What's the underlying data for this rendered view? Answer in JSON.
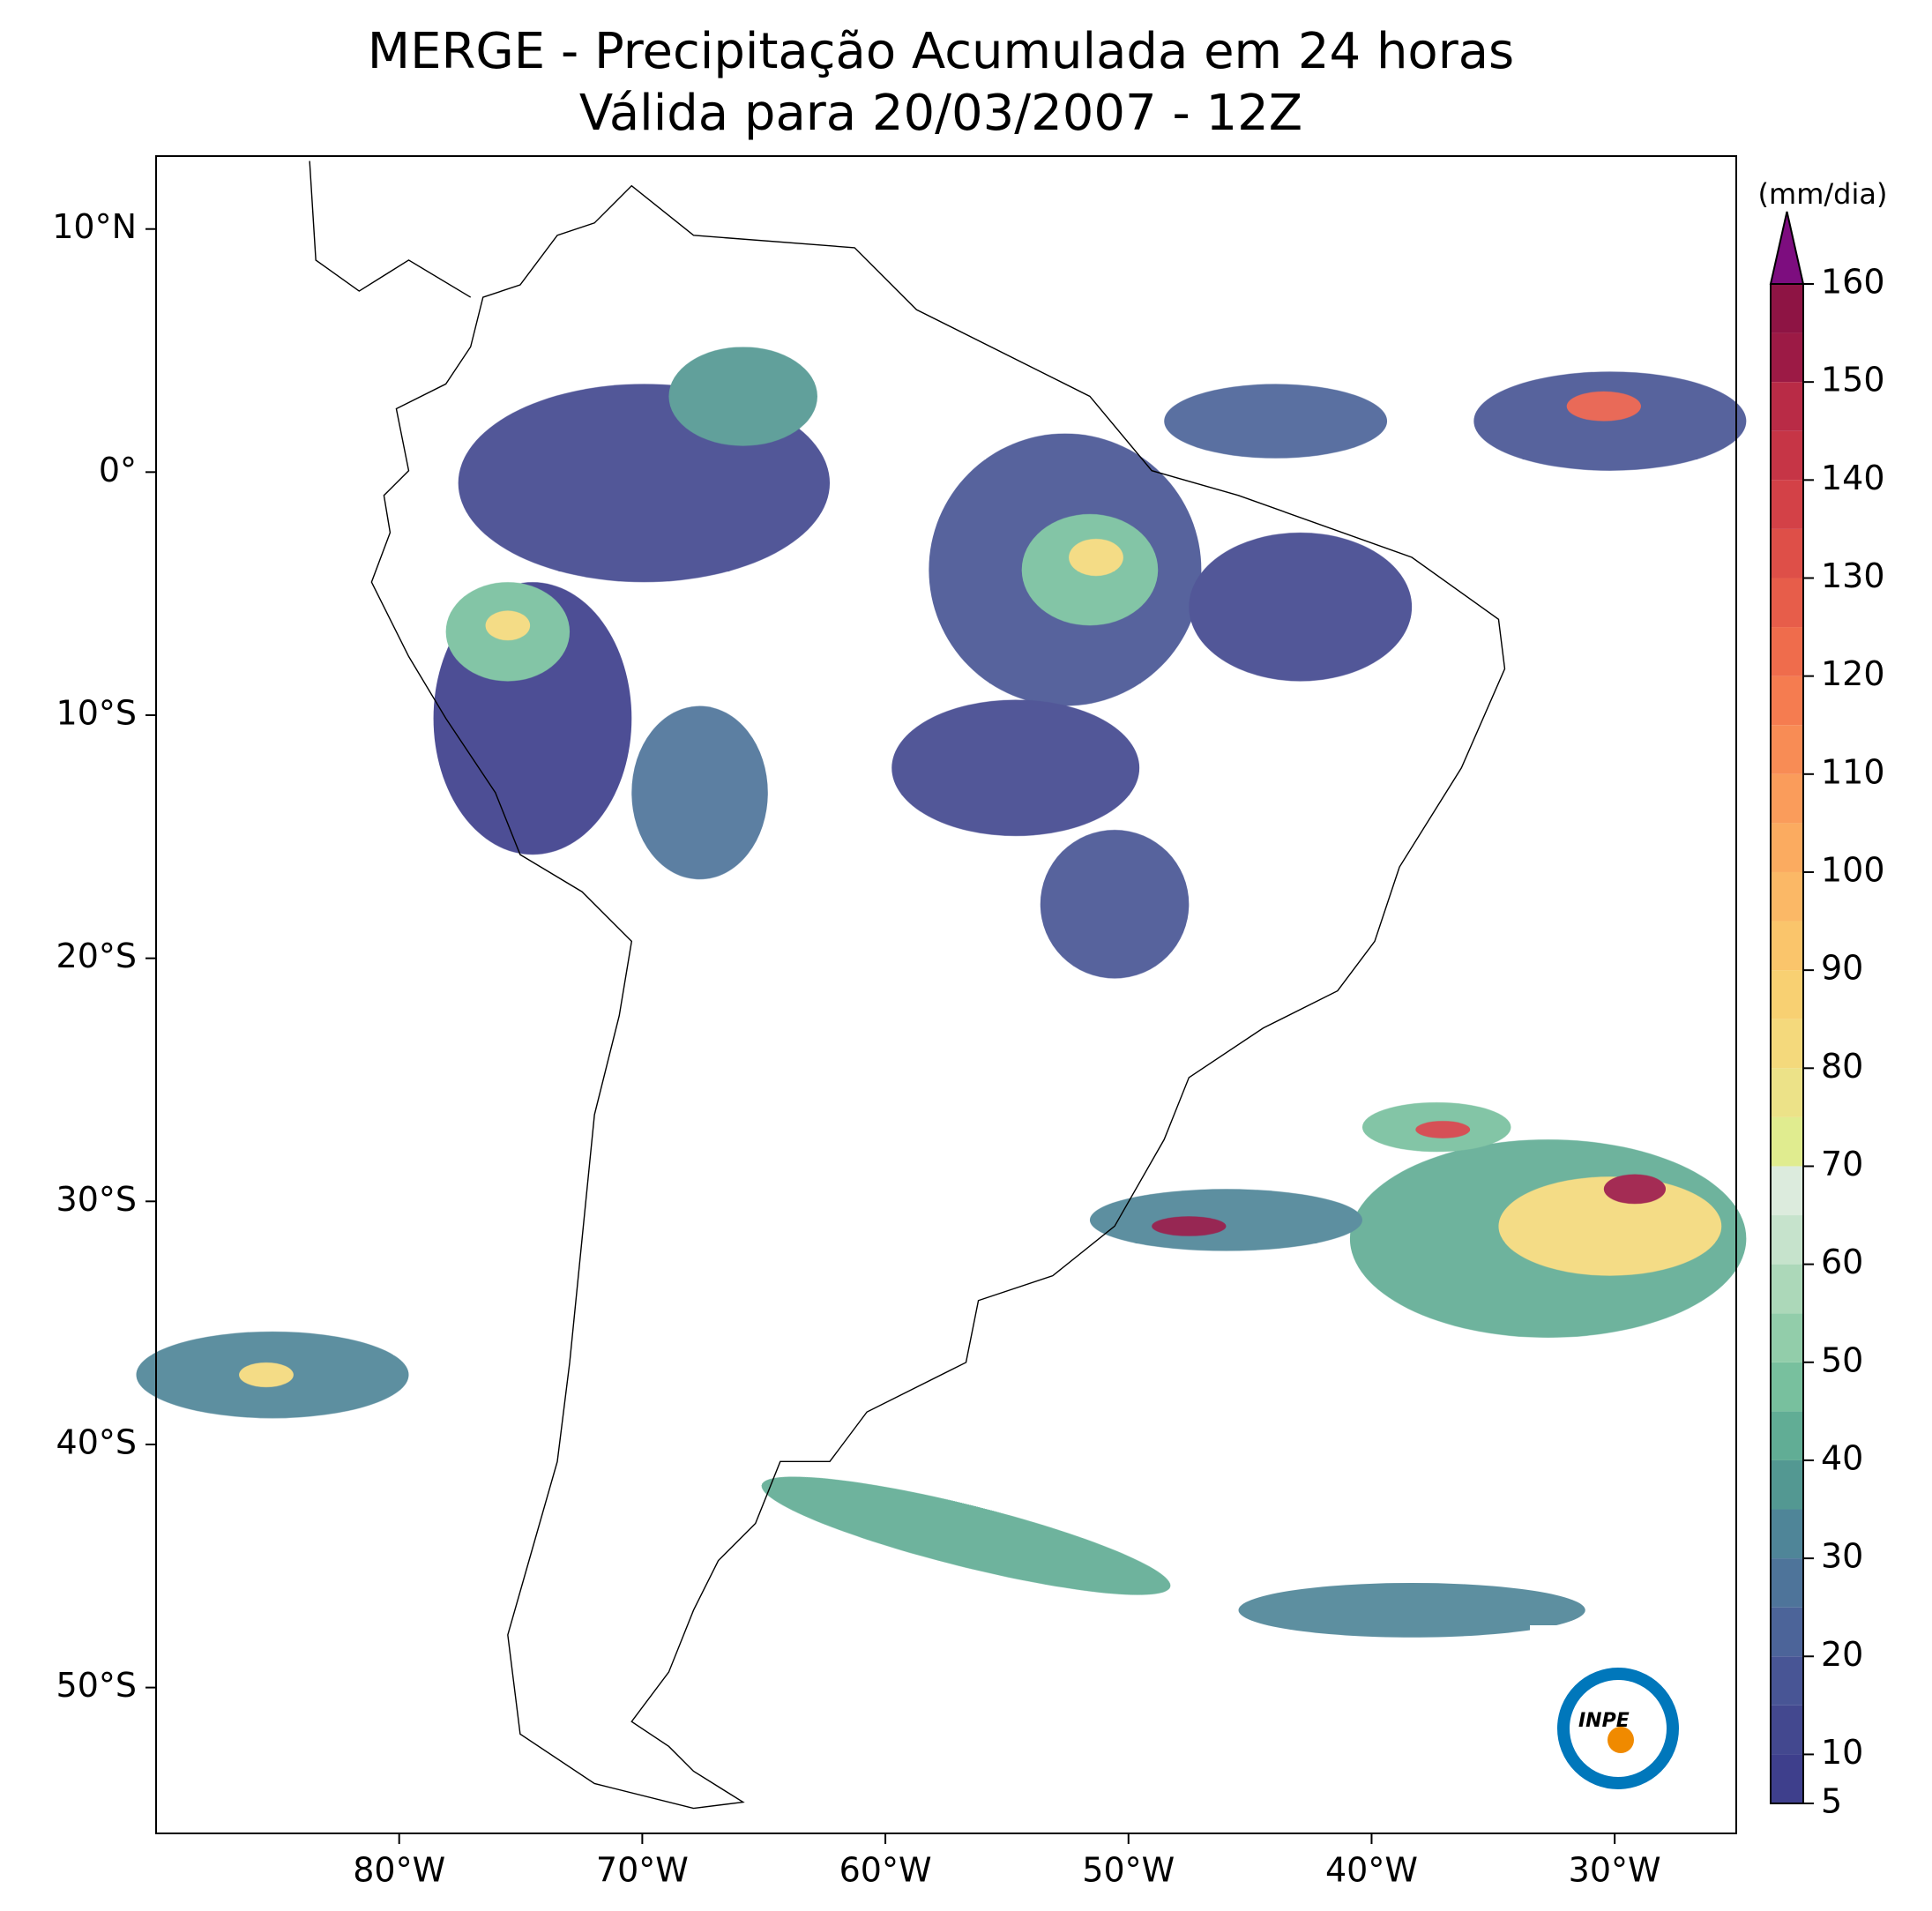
{
  "chart_data": {
    "type": "map",
    "title": "MERGE - Precipitação Acumulada em 24 horas",
    "subtitle": "Válida para 20/03/2007 - 12Z",
    "xlim": [
      -90,
      -25
    ],
    "ylim": [
      -56,
      13
    ],
    "xticks": [
      {
        "value": -80,
        "label": "80°W"
      },
      {
        "value": -70,
        "label": "70°W"
      },
      {
        "value": -60,
        "label": "60°W"
      },
      {
        "value": -50,
        "label": "50°W"
      },
      {
        "value": -40,
        "label": "40°W"
      },
      {
        "value": -30,
        "label": "30°W"
      }
    ],
    "yticks": [
      {
        "value": 10,
        "label": "10°N"
      },
      {
        "value": 0,
        "label": "0°"
      },
      {
        "value": -10,
        "label": "10°S"
      },
      {
        "value": -20,
        "label": "20°S"
      },
      {
        "value": -30,
        "label": "30°S"
      },
      {
        "value": -40,
        "label": "40°S"
      },
      {
        "value": -50,
        "label": "50°S"
      }
    ],
    "colorbar": {
      "label": "(mm/dia)",
      "levels": [
        5,
        10,
        15,
        20,
        25,
        30,
        35,
        40,
        45,
        50,
        55,
        60,
        65,
        70,
        75,
        80,
        85,
        90,
        95,
        100,
        105,
        110,
        115,
        120,
        125,
        130,
        135,
        140,
        145,
        150,
        155,
        160
      ],
      "colors": [
        "#3e3f8c",
        "#43488f",
        "#485595",
        "#4c6499",
        "#4e749a",
        "#4f8598",
        "#539892",
        "#61ad95",
        "#78c09e",
        "#92cdaa",
        "#acd8b9",
        "#c6e3cc",
        "#dcebdd",
        "#e0ec8f",
        "#ece288",
        "#f4d97c",
        "#f8d072",
        "#fac56b",
        "#fbb866",
        "#fbab60",
        "#fa9c5b",
        "#f88c55",
        "#f57c50",
        "#ef6c4c",
        "#e75d4a",
        "#de4f48",
        "#d34147",
        "#c63546",
        "#b92b46",
        "#9c1a45",
        "#8e1444"
      ],
      "extend_color": "#7d0d7f",
      "ticks": [
        5,
        10,
        20,
        30,
        40,
        50,
        60,
        70,
        80,
        90,
        100,
        110,
        120,
        130,
        140,
        150,
        160
      ]
    },
    "logo_text": "INPE"
  }
}
